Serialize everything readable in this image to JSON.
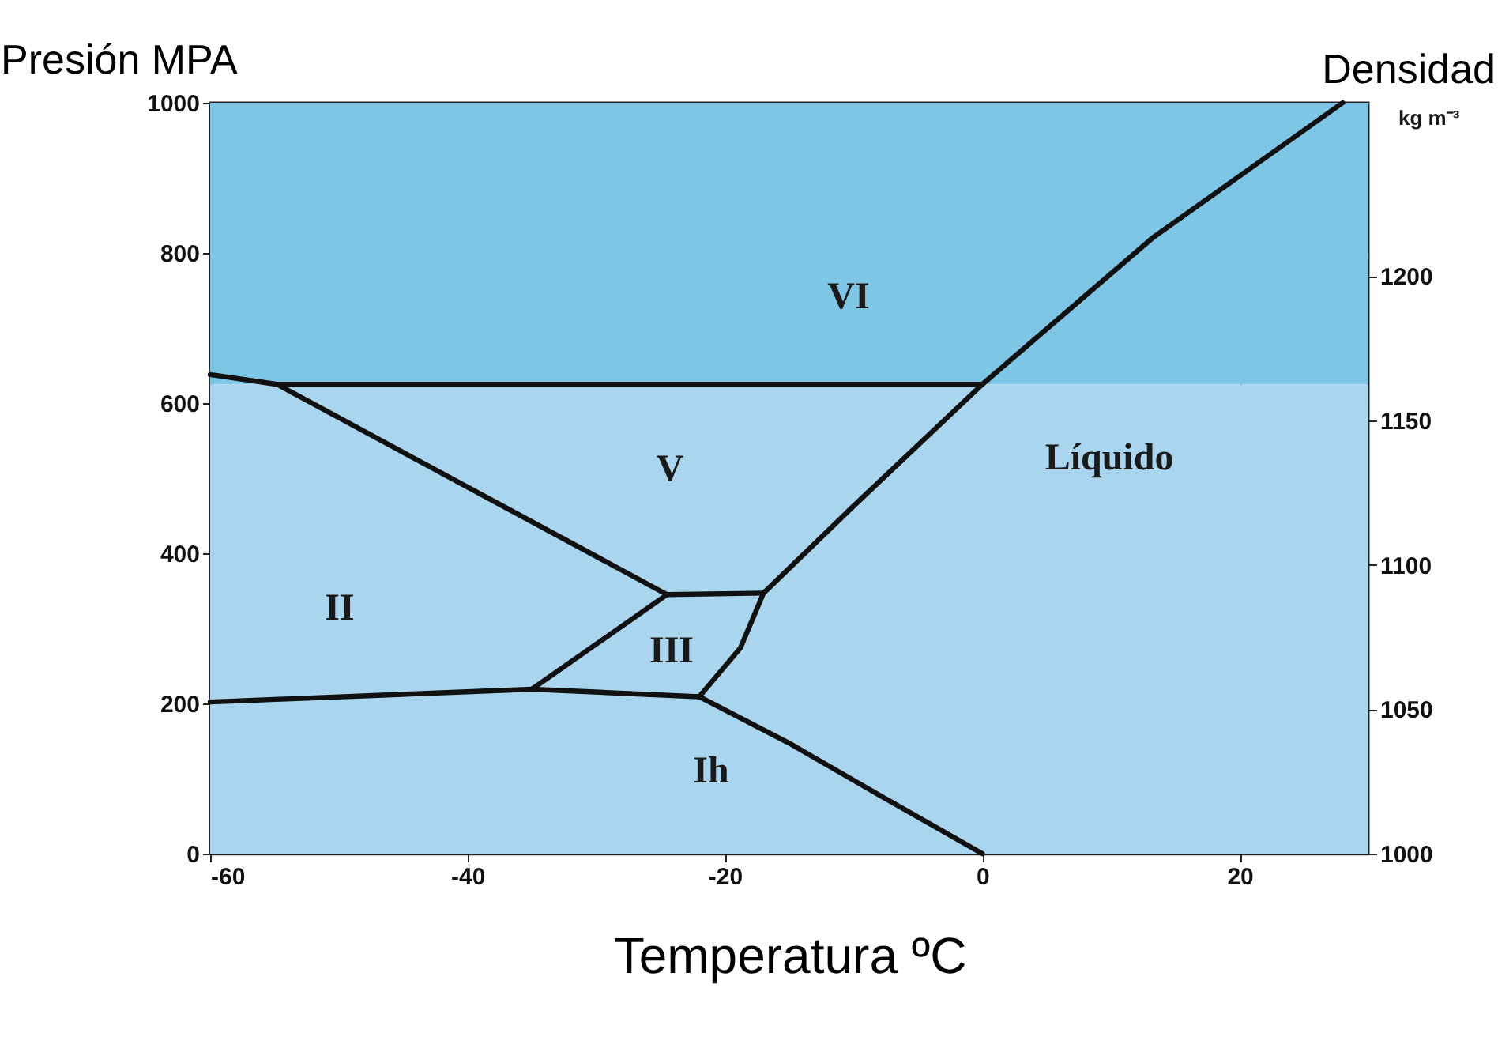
{
  "chart_data": {
    "type": "line",
    "xlabel": "Temperatura ºC",
    "ylabel": "Presión MPA",
    "y2label": "Densidad",
    "xlim": [
      -60,
      30
    ],
    "xticks": [
      -60,
      -40,
      -20,
      0,
      20
    ],
    "ylim": [
      0,
      1000
    ],
    "yticks": [
      0,
      200,
      400,
      600,
      800,
      1000
    ],
    "y2lim": [
      1000,
      1260
    ],
    "y2ticks": [
      1000,
      1050,
      1100,
      1150,
      1200
    ],
    "grid": true,
    "marker": "none",
    "line_style": "solid",
    "bands": [
      {
        "axis": "y",
        "from": 625,
        "to": 1000,
        "color": "#7ec6e6"
      },
      {
        "axis": "y",
        "from": 0,
        "to": 625,
        "color": "#a9d6ee"
      }
    ],
    "series": [
      {
        "color": "#111111",
        "x": [
          -60,
          -35,
          -22,
          -15,
          -7.6,
          0
        ],
        "values": [
          202,
          219,
          209,
          147,
          74,
          0
        ]
      },
      {
        "color": "#111111",
        "x": [
          -22,
          -18.8,
          -17,
          -10,
          0,
          13.3,
          28
        ],
        "values": [
          209,
          274,
          347,
          463,
          625,
          821,
          1000
        ]
      },
      {
        "color": "#111111",
        "x": [
          -35,
          -24.5
        ],
        "values": [
          219,
          345
        ]
      },
      {
        "color": "#111111",
        "x": [
          -24.5,
          -17
        ],
        "values": [
          345,
          347
        ]
      },
      {
        "color": "#111111",
        "x": [
          -54.8,
          -24.5
        ],
        "values": [
          625,
          345
        ]
      },
      {
        "color": "#111111",
        "x": [
          -60,
          -54.8,
          0
        ],
        "values": [
          638,
          625,
          625
        ]
      }
    ],
    "annotations": [
      "VI",
      "V",
      "II",
      "III",
      "Ih",
      "Líquido",
      "kg m⁻³"
    ]
  }
}
